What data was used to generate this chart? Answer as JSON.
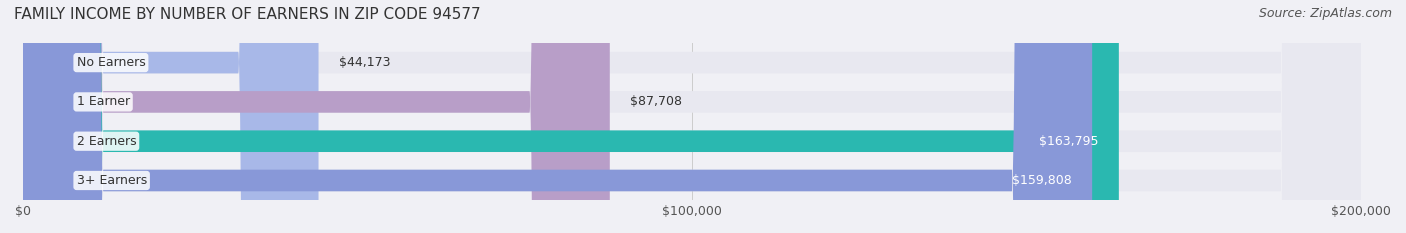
{
  "title": "FAMILY INCOME BY NUMBER OF EARNERS IN ZIP CODE 94577",
  "source": "Source: ZipAtlas.com",
  "categories": [
    "No Earners",
    "1 Earner",
    "2 Earners",
    "3+ Earners"
  ],
  "values": [
    44173,
    87708,
    163795,
    159808
  ],
  "bar_colors": [
    "#a8b8e8",
    "#b89ec8",
    "#2ab8b0",
    "#8898d8"
  ],
  "label_colors": [
    "#555555",
    "#555555",
    "#ffffff",
    "#ffffff"
  ],
  "xlim": [
    0,
    200000
  ],
  "xticks": [
    0,
    100000,
    200000
  ],
  "xtick_labels": [
    "$0",
    "$100,000",
    "$200,000"
  ],
  "background_color": "#f0f0f5",
  "bar_background_color": "#e8e8f0",
  "title_fontsize": 11,
  "source_fontsize": 9,
  "tick_fontsize": 9,
  "label_fontsize": 9,
  "category_fontsize": 9
}
